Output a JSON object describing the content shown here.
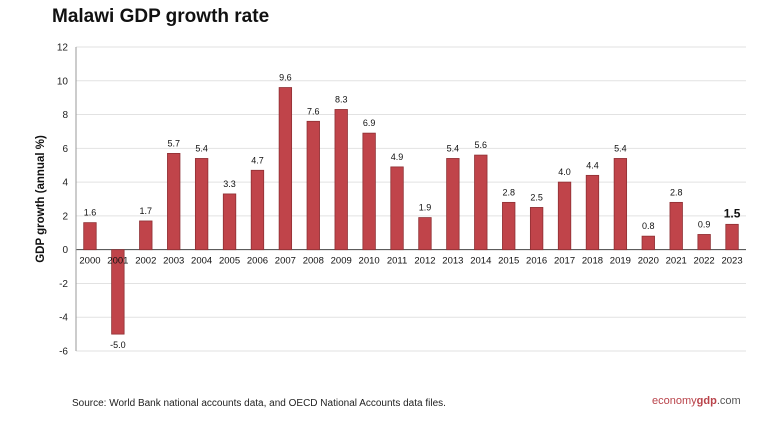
{
  "chart_data": {
    "type": "bar",
    "title": "Malawi GDP growth rate",
    "ylabel": "GDP growth (annual %)",
    "xlabel": "",
    "ylim": [
      -6,
      12
    ],
    "yticks": [
      "12",
      "10",
      "8",
      "6",
      "4",
      "2",
      "0",
      "-2",
      "-4",
      "-6"
    ],
    "grid": true,
    "categories": [
      "2000",
      "2001",
      "2002",
      "2003",
      "2004",
      "2005",
      "2006",
      "2007",
      "2008",
      "2009",
      "2010",
      "2011",
      "2012",
      "2013",
      "2014",
      "2015",
      "2016",
      "2017",
      "2018",
      "2019",
      "2020",
      "2021",
      "2022",
      "2023"
    ],
    "values": [
      1.6,
      -5.0,
      1.7,
      5.7,
      5.4,
      3.3,
      4.7,
      9.6,
      7.6,
      8.3,
      6.9,
      4.9,
      1.9,
      5.4,
      5.6,
      2.8,
      2.5,
      4.0,
      4.4,
      5.4,
      0.8,
      2.8,
      0.9,
      1.5
    ],
    "value_labels": [
      "1.6",
      "-5.0",
      "1.7",
      "5.7",
      "5.4",
      "3.3",
      "4.7",
      "9.6",
      "7.6",
      "8.3",
      "6.9",
      "4.9",
      "1.9",
      "5.4",
      "5.6",
      "2.8",
      "2.5",
      "4.0",
      "4.4",
      "5.4",
      "0.8",
      "2.8",
      "0.9",
      "1.5"
    ],
    "highlighted_label_index": 23,
    "bar_color": "#c0444a",
    "bar_edge_color": "#8e2f33"
  },
  "footer": {
    "source": "Source:  World Bank national accounts data, and OECD National Accounts data files.",
    "brand_part1": "economy",
    "brand_part2": "gdp",
    "brand_part3": ".com"
  }
}
